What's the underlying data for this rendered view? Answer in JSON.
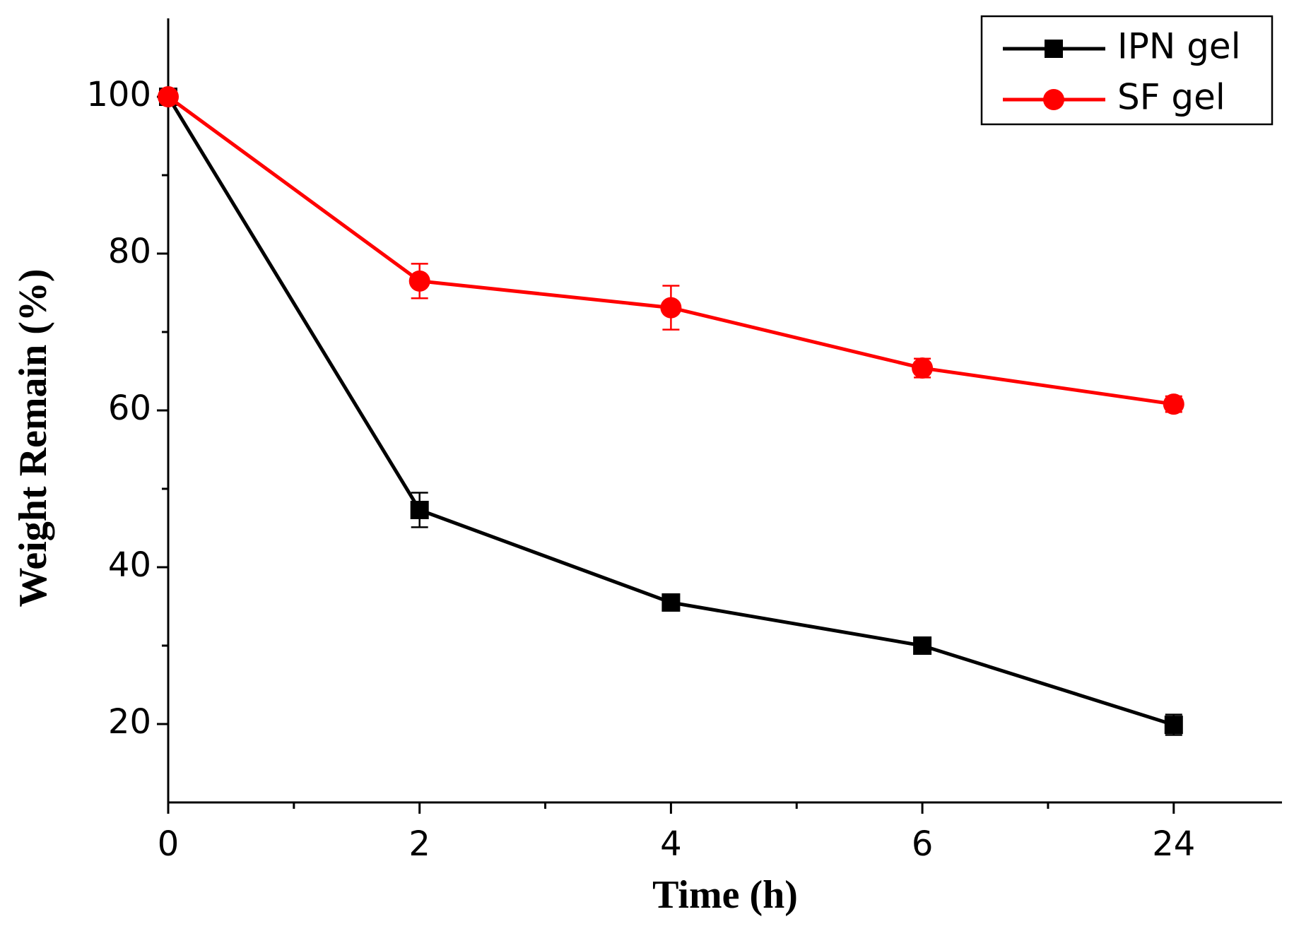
{
  "chart_data": {
    "type": "line",
    "xlabel": "Time (h)",
    "ylabel": "Weight Remain (%)",
    "categories": [
      "0",
      "2",
      "4",
      "6",
      "24"
    ],
    "series": [
      {
        "name": "IPN gel",
        "color": "#000000",
        "marker": "square",
        "values": [
          100,
          47.3,
          35.5,
          30,
          19.9
        ],
        "errors": [
          0,
          2.2,
          0.6,
          0.6,
          1.3
        ]
      },
      {
        "name": "SF gel",
        "color": "#ff0000",
        "marker": "circle",
        "values": [
          100,
          76.5,
          73.1,
          65.4,
          60.8
        ],
        "errors": [
          0,
          2.2,
          2.8,
          1.2,
          1.0
        ]
      }
    ],
    "ylim": [
      10,
      110
    ],
    "yticks": [
      20,
      40,
      60,
      80,
      100
    ],
    "grid": false,
    "legend": "upper right"
  }
}
